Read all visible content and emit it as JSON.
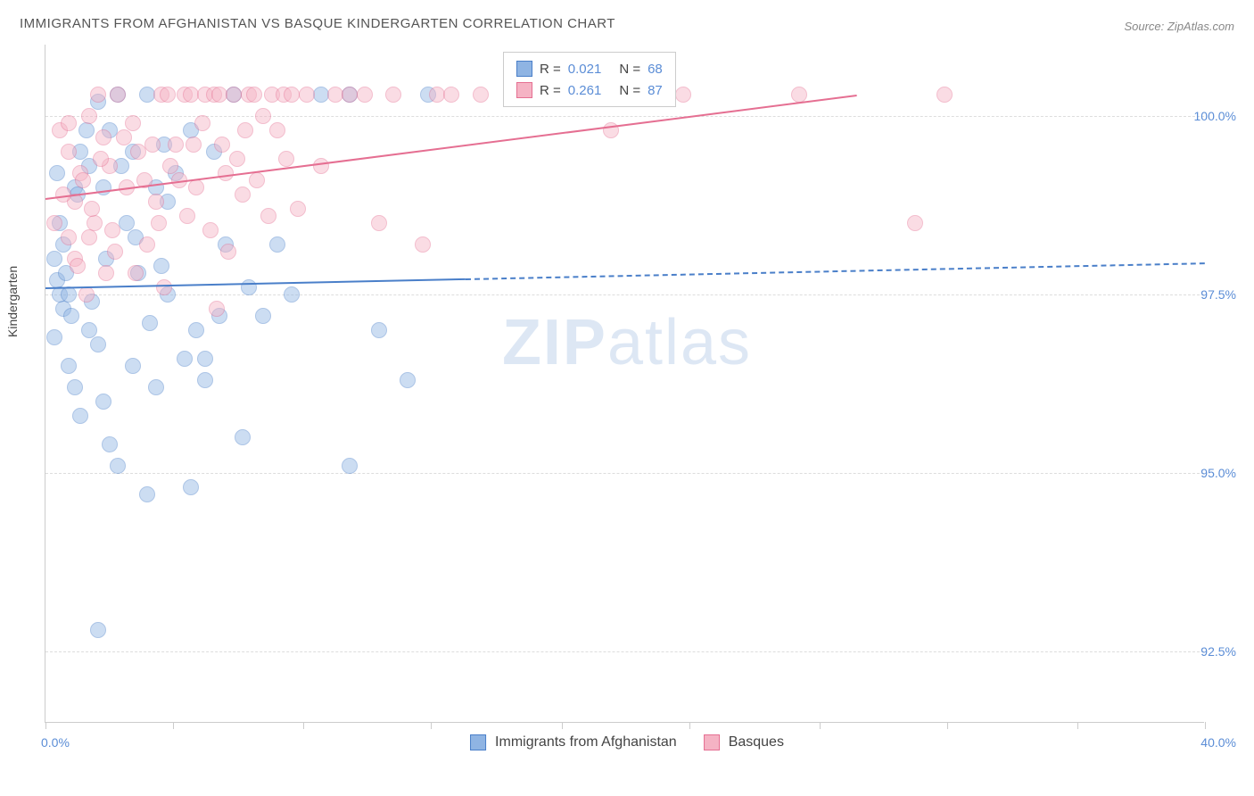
{
  "title": "IMMIGRANTS FROM AFGHANISTAN VS BASQUE KINDERGARTEN CORRELATION CHART",
  "source": "Source: ZipAtlas.com",
  "y_axis_label": "Kindergarten",
  "watermark": {
    "zip": "ZIP",
    "atlas": "atlas"
  },
  "chart": {
    "type": "scatter",
    "xlim": [
      0,
      40
    ],
    "ylim": [
      91.5,
      101.0
    ],
    "x_ticks": [
      0,
      4.4,
      8.9,
      13.3,
      17.8,
      22.2,
      26.7,
      31.1,
      35.6,
      40
    ],
    "x_tick_labels": {
      "0": "0.0%",
      "40": "40.0%"
    },
    "y_ticks": [
      92.5,
      95.0,
      97.5,
      100.0
    ],
    "y_tick_labels": [
      "92.5%",
      "95.0%",
      "97.5%",
      "100.0%"
    ],
    "background_color": "#ffffff",
    "grid_color": "#dddddd",
    "point_radius": 9,
    "point_opacity": 0.45,
    "series": [
      {
        "name": "Immigrants from Afghanistan",
        "fill": "#8fb4e3",
        "stroke": "#4a7fc9",
        "r_label": "R =",
        "r_value": "0.021",
        "n_label": "N =",
        "n_value": "68",
        "trend": {
          "x1": 0,
          "y1": 97.6,
          "x2": 40,
          "y2": 97.95,
          "solid_until_x": 14.5
        },
        "points": [
          [
            0.3,
            98.0
          ],
          [
            0.5,
            97.5
          ],
          [
            0.4,
            97.7
          ],
          [
            0.6,
            97.3
          ],
          [
            0.8,
            97.5
          ],
          [
            0.5,
            98.5
          ],
          [
            0.7,
            97.8
          ],
          [
            0.9,
            97.2
          ],
          [
            1.0,
            99.0
          ],
          [
            1.2,
            99.5
          ],
          [
            1.5,
            99.3
          ],
          [
            1.8,
            100.2
          ],
          [
            2.0,
            99.0
          ],
          [
            2.2,
            99.8
          ],
          [
            2.5,
            100.3
          ],
          [
            2.8,
            98.5
          ],
          [
            3.0,
            99.5
          ],
          [
            3.2,
            97.8
          ],
          [
            3.5,
            100.3
          ],
          [
            3.8,
            99.0
          ],
          [
            4.0,
            97.9
          ],
          [
            4.2,
            98.8
          ],
          [
            4.5,
            99.2
          ],
          [
            4.8,
            96.6
          ],
          [
            5.0,
            99.8
          ],
          [
            5.2,
            97.0
          ],
          [
            5.5,
            96.3
          ],
          [
            5.8,
            99.5
          ],
          [
            6.0,
            97.2
          ],
          [
            6.2,
            98.2
          ],
          [
            6.5,
            100.3
          ],
          [
            6.8,
            95.5
          ],
          [
            0.8,
            96.5
          ],
          [
            1.0,
            96.2
          ],
          [
            1.2,
            95.8
          ],
          [
            1.5,
            97.0
          ],
          [
            1.8,
            96.8
          ],
          [
            2.0,
            96.0
          ],
          [
            2.2,
            95.4
          ],
          [
            2.5,
            95.1
          ],
          [
            3.5,
            94.7
          ],
          [
            3.0,
            96.5
          ],
          [
            3.8,
            96.2
          ],
          [
            4.2,
            97.5
          ],
          [
            5.0,
            94.8
          ],
          [
            5.5,
            96.6
          ],
          [
            7.0,
            97.6
          ],
          [
            7.5,
            97.2
          ],
          [
            8.0,
            98.2
          ],
          [
            8.5,
            97.5
          ],
          [
            9.5,
            100.3
          ],
          [
            10.5,
            100.3
          ],
          [
            11.5,
            97.0
          ],
          [
            1.8,
            92.8
          ],
          [
            10.5,
            95.1
          ],
          [
            12.5,
            96.3
          ],
          [
            13.2,
            100.3
          ],
          [
            0.4,
            99.2
          ],
          [
            0.6,
            98.2
          ],
          [
            0.3,
            96.9
          ],
          [
            1.1,
            98.9
          ],
          [
            1.4,
            99.8
          ],
          [
            1.6,
            97.4
          ],
          [
            2.1,
            98.0
          ],
          [
            2.6,
            99.3
          ],
          [
            3.1,
            98.3
          ],
          [
            3.6,
            97.1
          ],
          [
            4.1,
            99.6
          ]
        ]
      },
      {
        "name": "Basques",
        "fill": "#f5b3c4",
        "stroke": "#e56f92",
        "r_label": "R =",
        "r_value": "0.261",
        "n_label": "N =",
        "n_value": "87",
        "trend": {
          "x1": 0,
          "y1": 98.85,
          "x2": 28,
          "y2": 100.3,
          "solid_until_x": 28
        },
        "points": [
          [
            0.5,
            99.8
          ],
          [
            0.8,
            99.5
          ],
          [
            1.0,
            98.8
          ],
          [
            1.2,
            99.2
          ],
          [
            1.5,
            100.0
          ],
          [
            1.8,
            100.3
          ],
          [
            2.0,
            99.7
          ],
          [
            2.2,
            99.3
          ],
          [
            2.5,
            100.3
          ],
          [
            2.8,
            99.0
          ],
          [
            3.0,
            99.9
          ],
          [
            3.2,
            99.5
          ],
          [
            3.5,
            98.2
          ],
          [
            3.8,
            98.8
          ],
          [
            4.0,
            100.3
          ],
          [
            4.2,
            100.3
          ],
          [
            4.5,
            99.6
          ],
          [
            4.8,
            100.3
          ],
          [
            5.0,
            100.3
          ],
          [
            5.2,
            99.0
          ],
          [
            5.5,
            100.3
          ],
          [
            5.8,
            100.3
          ],
          [
            6.0,
            100.3
          ],
          [
            6.2,
            99.2
          ],
          [
            6.5,
            100.3
          ],
          [
            6.8,
            98.9
          ],
          [
            7.0,
            100.3
          ],
          [
            7.2,
            100.3
          ],
          [
            7.5,
            100.0
          ],
          [
            7.8,
            100.3
          ],
          [
            8.0,
            99.8
          ],
          [
            8.2,
            100.3
          ],
          [
            8.5,
            100.3
          ],
          [
            9.0,
            100.3
          ],
          [
            9.5,
            99.3
          ],
          [
            10.0,
            100.3
          ],
          [
            10.5,
            100.3
          ],
          [
            11.0,
            100.3
          ],
          [
            11.5,
            98.5
          ],
          [
            12.0,
            100.3
          ],
          [
            13.0,
            98.2
          ],
          [
            13.5,
            100.3
          ],
          [
            14.0,
            100.3
          ],
          [
            15.0,
            100.3
          ],
          [
            1.0,
            98.0
          ],
          [
            1.5,
            98.3
          ],
          [
            0.3,
            98.5
          ],
          [
            0.6,
            98.9
          ],
          [
            0.8,
            98.3
          ],
          [
            1.1,
            97.9
          ],
          [
            1.4,
            97.5
          ],
          [
            1.7,
            98.5
          ],
          [
            2.1,
            97.8
          ],
          [
            2.4,
            98.1
          ],
          [
            0.8,
            99.9
          ],
          [
            1.3,
            99.1
          ],
          [
            1.6,
            98.7
          ],
          [
            1.9,
            99.4
          ],
          [
            2.3,
            98.4
          ],
          [
            2.7,
            99.7
          ],
          [
            3.1,
            97.8
          ],
          [
            3.4,
            99.1
          ],
          [
            3.7,
            99.6
          ],
          [
            3.9,
            98.5
          ],
          [
            4.1,
            97.6
          ],
          [
            4.3,
            99.3
          ],
          [
            4.6,
            99.1
          ],
          [
            4.9,
            98.6
          ],
          [
            5.1,
            99.6
          ],
          [
            5.4,
            99.9
          ],
          [
            5.7,
            98.4
          ],
          [
            5.9,
            97.3
          ],
          [
            6.1,
            99.6
          ],
          [
            6.3,
            98.1
          ],
          [
            6.6,
            99.4
          ],
          [
            6.9,
            99.8
          ],
          [
            7.3,
            99.1
          ],
          [
            7.7,
            98.6
          ],
          [
            8.3,
            99.4
          ],
          [
            8.7,
            98.7
          ],
          [
            26.0,
            100.3
          ],
          [
            30.0,
            98.5
          ],
          [
            31.0,
            100.3
          ],
          [
            18.5,
            100.3
          ],
          [
            19.5,
            99.8
          ],
          [
            20.5,
            100.3
          ],
          [
            22.0,
            100.3
          ]
        ]
      }
    ]
  },
  "bottom_legend": {
    "series1": "Immigrants from Afghanistan",
    "series2": "Basques"
  }
}
